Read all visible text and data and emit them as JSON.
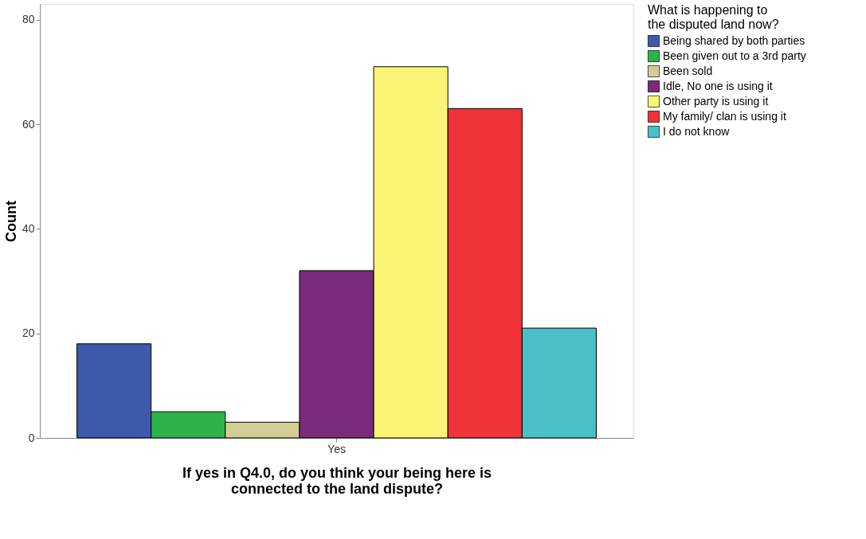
{
  "chart_data": {
    "type": "bar",
    "xlabel": "If yes in Q4.0, do you think your being here is\nconnected to the land dispute?",
    "ylabel": "Count",
    "legend_title": "What is happening to\nthe disputed land now?",
    "categories": [
      "Yes"
    ],
    "series": [
      {
        "name": "Being shared by both parties",
        "color": "#3e58ac",
        "values": [
          18
        ]
      },
      {
        "name": "Been given out to a 3rd party",
        "color": "#2db34a",
        "values": [
          5
        ]
      },
      {
        "name": "Been sold",
        "color": "#d4cc96",
        "values": [
          3
        ]
      },
      {
        "name": "Idle, No one is using it",
        "color": "#792a7a",
        "values": [
          32
        ]
      },
      {
        "name": "Other party is using it",
        "color": "#f9f475",
        "values": [
          71
        ]
      },
      {
        "name": "My family/ clan is using it",
        "color": "#ef3339",
        "values": [
          63
        ]
      },
      {
        "name": "I do not know",
        "color": "#48c0c6",
        "values": [
          21
        ]
      }
    ],
    "ylim": [
      0,
      83
    ],
    "yticks": [
      0,
      20,
      40,
      60,
      80
    ],
    "grid": false,
    "legend": "right"
  }
}
